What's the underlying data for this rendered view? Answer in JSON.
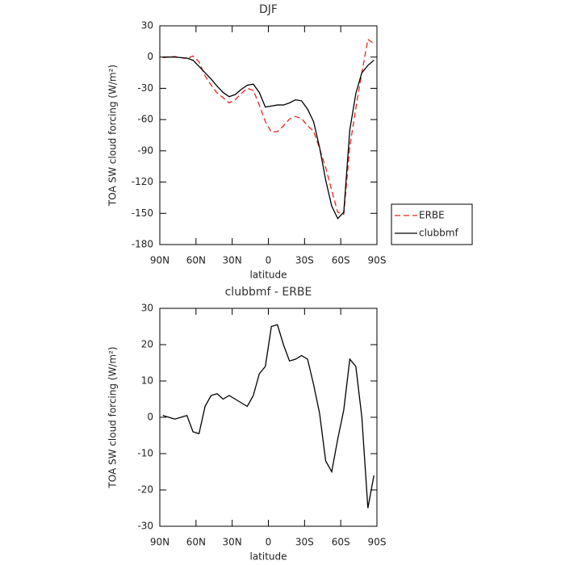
{
  "chart_data": [
    {
      "type": "line",
      "title": "DJF",
      "x_label": "latitude",
      "y_label": "TOA SW cloud forcing (W/m²)",
      "x": [
        87.5,
        82.5,
        77.5,
        72.5,
        67.5,
        62.5,
        57.5,
        52.5,
        47.5,
        42.5,
        37.5,
        32.5,
        27.5,
        22.5,
        17.5,
        12.5,
        7.5,
        2.5,
        -2.5,
        -7.5,
        -12.5,
        -17.5,
        -22.5,
        -27.5,
        -32.5,
        -37.5,
        -42.5,
        -47.5,
        -52.5,
        -57.5,
        -62.5,
        -67.5,
        -72.5,
        -77.5,
        -82.5,
        -87.5
      ],
      "series": [
        {
          "name": "ERBE",
          "color": "#e8261f",
          "line_style": "dashed",
          "values": [
            -0.5,
            0,
            0.5,
            -0.5,
            -1.5,
            1,
            -4.5,
            -18,
            -27,
            -34.5,
            -39,
            -44,
            -41,
            -35,
            -30,
            -32,
            -46,
            -62,
            -72,
            -71.5,
            -66,
            -59.5,
            -57,
            -59,
            -66,
            -71,
            -88,
            -106,
            -128,
            -149,
            -151,
            -86,
            -49,
            -15,
            17,
            13
          ]
        },
        {
          "name": "clubbmf",
          "color": "#000000",
          "line_style": "solid",
          "values": [
            0,
            0,
            0,
            -0.5,
            -1,
            -3,
            -9,
            -15,
            -21,
            -28,
            -34,
            -38,
            -36,
            -31,
            -27,
            -26,
            -34,
            -48,
            -47,
            -46,
            -46,
            -44,
            -41,
            -42,
            -50,
            -62,
            -87,
            -118,
            -143,
            -155,
            -149,
            -70,
            -35,
            -15,
            -8,
            -3
          ]
        }
      ],
      "xlim": [
        90,
        -90
      ],
      "xticks": [
        {
          "value": 90,
          "label": "90N"
        },
        {
          "value": 60,
          "label": "60N"
        },
        {
          "value": 30,
          "label": "30N"
        },
        0,
        {
          "value": -30,
          "label": "30S"
        },
        {
          "value": -60,
          "label": "60S"
        },
        {
          "value": -90,
          "label": "90S"
        }
      ],
      "ylim": [
        -180,
        30
      ],
      "yticks": [
        30,
        0,
        -30,
        -60,
        -90,
        -120,
        -150,
        -180
      ],
      "legend": "right"
    },
    {
      "type": "line",
      "title": "clubbmf - ERBE",
      "x_label": "latitude",
      "y_label": "TOA SW cloud forcing (W/m²)",
      "x": [
        87.5,
        82.5,
        77.5,
        72.5,
        67.5,
        62.5,
        57.5,
        52.5,
        47.5,
        42.5,
        37.5,
        32.5,
        27.5,
        22.5,
        17.5,
        12.5,
        7.5,
        2.5,
        -2.5,
        -7.5,
        -12.5,
        -17.5,
        -22.5,
        -27.5,
        -32.5,
        -37.5,
        -42.5,
        -47.5,
        -52.5,
        -57.5,
        -62.5,
        -67.5,
        -72.5,
        -77.5,
        -82.5,
        -87.5
      ],
      "values": [
        0.5,
        0,
        -0.5,
        0,
        0.5,
        -4,
        -4.5,
        3,
        6,
        6.5,
        5,
        6,
        5,
        4,
        3,
        6,
        12,
        14,
        25,
        25.5,
        20,
        15.5,
        16,
        17,
        16,
        9,
        1,
        -12,
        -15,
        -6,
        2,
        16,
        14,
        0,
        -25,
        -16
      ],
      "color": "#000000",
      "xlim": [
        90,
        -90
      ],
      "xticks": [
        {
          "value": 90,
          "label": "90N"
        },
        {
          "value": 60,
          "label": "60N"
        },
        {
          "value": 30,
          "label": "30N"
        },
        0,
        {
          "value": -30,
          "label": "30S"
        },
        {
          "value": -60,
          "label": "60S"
        },
        {
          "value": -90,
          "label": "90S"
        }
      ],
      "ylim": [
        -30,
        30
      ],
      "yticks": [
        30,
        20,
        10,
        0,
        -10,
        -20,
        -30
      ]
    }
  ]
}
